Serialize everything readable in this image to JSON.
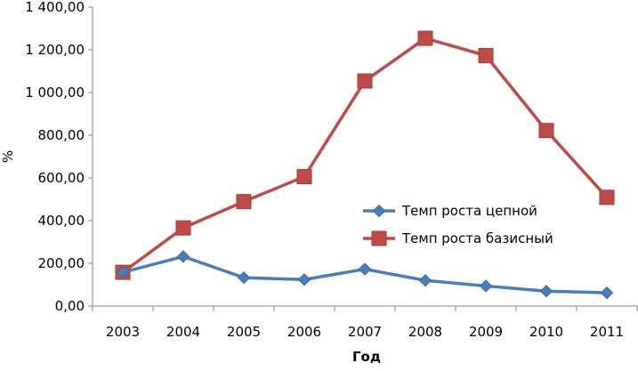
{
  "chart_data": {
    "type": "line",
    "title": "",
    "xlabel": "Год",
    "ylabel": "%",
    "categories": [
      "2003",
      "2004",
      "2005",
      "2006",
      "2007",
      "2008",
      "2009",
      "2010",
      "2011"
    ],
    "ylim": [
      0,
      1400
    ],
    "yticks": [
      0,
      200,
      400,
      600,
      800,
      1000,
      1200,
      1400
    ],
    "ytick_labels": [
      "0,00",
      "200,00",
      "400,00",
      "600,00",
      "800,00",
      "1 000,00",
      "1 200,00",
      "1 400,00"
    ],
    "grid": false,
    "legend_position": "right",
    "series": [
      {
        "name": "Темп роста цепной",
        "color": "#4a7ebb",
        "marker": "diamond",
        "values": [
          158,
          232,
          133,
          124,
          173,
          120,
          94,
          70,
          62
        ]
      },
      {
        "name": "Темп роста базисный",
        "color": "#be4b48",
        "marker": "square",
        "values": [
          158,
          366,
          489,
          606,
          1054,
          1254,
          1173,
          822,
          509
        ]
      }
    ]
  }
}
